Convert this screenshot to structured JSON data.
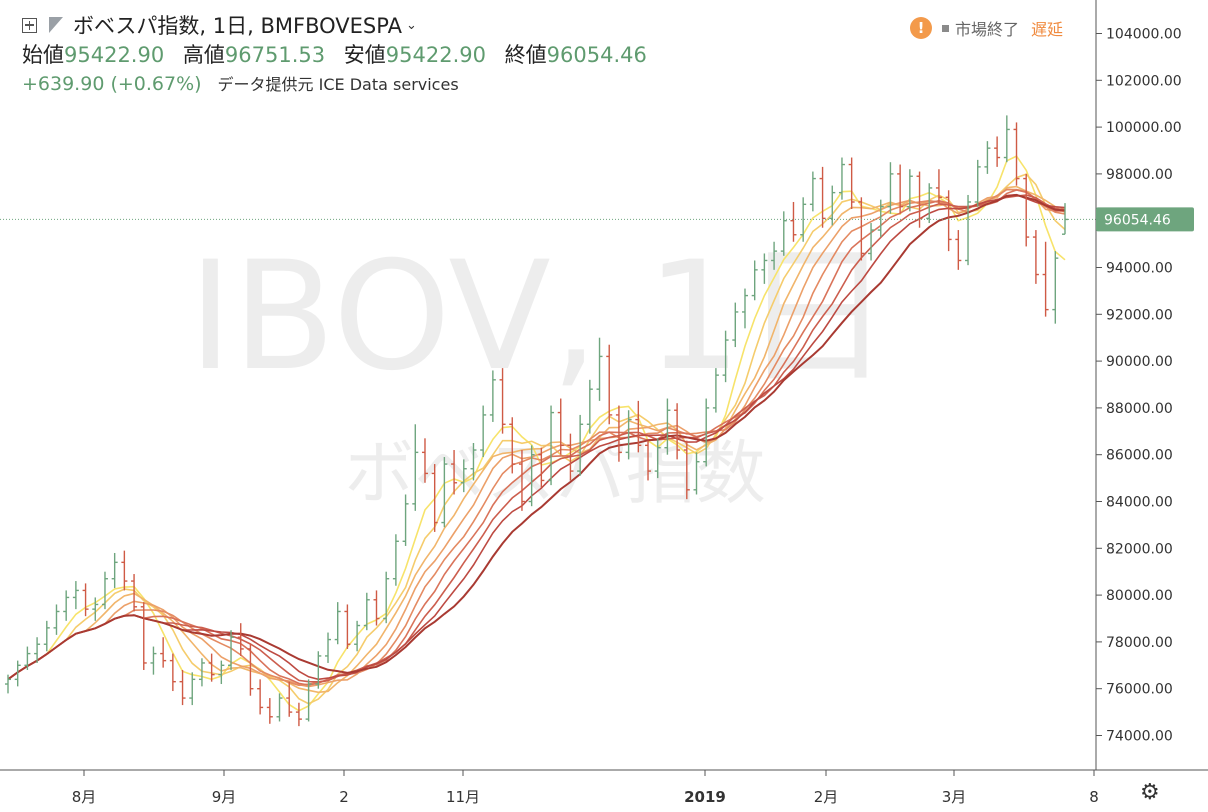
{
  "header": {
    "title": "ボベスパ指数, 1日, BMFBOVESPA",
    "open_label": "始値",
    "open": "95422.90",
    "high_label": "高値",
    "high": "96751.53",
    "low_label": "安値",
    "low": "95422.90",
    "close_label": "終値",
    "close": "96054.46",
    "change": "+639.90 (+0.67%)",
    "provider": "データ提供元 ICE Data services"
  },
  "status": {
    "market": "市場終了",
    "delay": "遅延"
  },
  "watermark": {
    "symbol": "IBOV, 1日",
    "name": "ボベスパ指数"
  },
  "colors": {
    "up": "#6ea57e",
    "down": "#cf5a45",
    "ribbon": [
      "#f7e36a",
      "#f5cc6c",
      "#f1b56b",
      "#eca069",
      "#e48a62",
      "#d9735a",
      "#cc5e4e",
      "#bd4a42",
      "#a93a32"
    ],
    "price_badge": "#6ea57e"
  },
  "chart_data": {
    "type": "candlestick",
    "y_ticks": [
      "104000.00",
      "102000.00",
      "100000.00",
      "98000.00",
      "96000.00",
      "94000.00",
      "92000.00",
      "90000.00",
      "88000.00",
      "86000.00",
      "84000.00",
      "82000.00",
      "80000.00",
      "78000.00",
      "76000.00",
      "74000.00"
    ],
    "x_ticks": [
      "8月",
      "9月",
      "2",
      "11月",
      "2019",
      "2月",
      "3月",
      "8"
    ],
    "ylim": [
      72000,
      105500
    ],
    "last_price": "96054.46",
    "ohlc_approx": [
      [
        76200,
        76600,
        75800,
        76400
      ],
      [
        76400,
        77200,
        76100,
        77000
      ],
      [
        77000,
        77800,
        76800,
        77500
      ],
      [
        77500,
        78200,
        77100,
        77900
      ],
      [
        77900,
        78900,
        77600,
        78600
      ],
      [
        78600,
        79600,
        78300,
        79300
      ],
      [
        79300,
        80200,
        78900,
        79900
      ],
      [
        79900,
        80600,
        79400,
        80200
      ],
      [
        80200,
        80500,
        79100,
        79400
      ],
      [
        79400,
        79900,
        78900,
        79600
      ],
      [
        79600,
        81000,
        79400,
        80700
      ],
      [
        80700,
        81800,
        80300,
        81400
      ],
      [
        81400,
        81900,
        80200,
        80600
      ],
      [
        80600,
        80900,
        79300,
        79500
      ],
      [
        79500,
        79700,
        76800,
        77100
      ],
      [
        77100,
        77800,
        76600,
        77500
      ],
      [
        77500,
        78200,
        76900,
        77200
      ],
      [
        77200,
        77500,
        75900,
        76300
      ],
      [
        76300,
        76800,
        75300,
        75600
      ],
      [
        75600,
        76700,
        75300,
        76400
      ],
      [
        76400,
        77300,
        76100,
        77100
      ],
      [
        77100,
        77500,
        76300,
        76600
      ],
      [
        76600,
        77200,
        76200,
        77000
      ],
      [
        77000,
        78500,
        76800,
        78200
      ],
      [
        78200,
        78800,
        77400,
        77700
      ],
      [
        77700,
        77900,
        75700,
        76000
      ],
      [
        76000,
        76400,
        74900,
        75200
      ],
      [
        75200,
        75600,
        74500,
        74800
      ],
      [
        74800,
        75800,
        74600,
        75600
      ],
      [
        75600,
        76300,
        74800,
        75000
      ],
      [
        75000,
        75400,
        74400,
        74700
      ],
      [
        74700,
        76400,
        74600,
        76200
      ],
      [
        76200,
        77600,
        76000,
        77400
      ],
      [
        77400,
        78400,
        77100,
        78100
      ],
      [
        78100,
        79700,
        77900,
        79300
      ],
      [
        79300,
        79600,
        77700,
        77900
      ],
      [
        77900,
        78900,
        77600,
        78700
      ],
      [
        78700,
        80100,
        78500,
        79800
      ],
      [
        79800,
        80200,
        78700,
        79000
      ],
      [
        79000,
        81000,
        78800,
        80700
      ],
      [
        80700,
        82600,
        80400,
        82300
      ],
      [
        82300,
        84300,
        82100,
        83900
      ],
      [
        83900,
        87300,
        83600,
        86100
      ],
      [
        86100,
        86700,
        84800,
        85200
      ],
      [
        85200,
        85600,
        82700,
        83100
      ],
      [
        83100,
        85900,
        82900,
        85600
      ],
      [
        85600,
        86200,
        84300,
        84800
      ],
      [
        84800,
        85800,
        84400,
        85400
      ],
      [
        85400,
        86500,
        84900,
        86200
      ],
      [
        86200,
        88100,
        85900,
        87700
      ],
      [
        87700,
        89600,
        87400,
        89200
      ],
      [
        89200,
        89700,
        86900,
        87300
      ],
      [
        87300,
        87600,
        85200,
        85600
      ],
      [
        85600,
        86200,
        83600,
        84000
      ],
      [
        84000,
        86400,
        83800,
        86000
      ],
      [
        86000,
        86300,
        84600,
        84900
      ],
      [
        84900,
        88100,
        84700,
        87800
      ],
      [
        87800,
        88400,
        86000,
        86400
      ],
      [
        86400,
        86900,
        84900,
        85300
      ],
      [
        85300,
        87700,
        85100,
        87300
      ],
      [
        87300,
        89200,
        86900,
        88800
      ],
      [
        88800,
        91000,
        88300,
        90200
      ],
      [
        90200,
        90700,
        87300,
        87700
      ],
      [
        87700,
        88100,
        85700,
        86100
      ],
      [
        86100,
        87900,
        85800,
        87500
      ],
      [
        87500,
        88300,
        86100,
        86400
      ],
      [
        86400,
        86600,
        84900,
        85300
      ],
      [
        85300,
        86700,
        85000,
        86300
      ],
      [
        86300,
        88400,
        86000,
        87900
      ],
      [
        87900,
        88200,
        85800,
        86200
      ],
      [
        86200,
        86600,
        84100,
        84500
      ],
      [
        84500,
        86100,
        84300,
        85700
      ],
      [
        85700,
        88400,
        85500,
        88000
      ],
      [
        88000,
        89700,
        87800,
        89400
      ],
      [
        89400,
        91300,
        89100,
        90900
      ],
      [
        90900,
        92500,
        90600,
        92100
      ],
      [
        92100,
        93100,
        91400,
        92800
      ],
      [
        92800,
        94300,
        92600,
        93900
      ],
      [
        93900,
        94600,
        93300,
        94300
      ],
      [
        94300,
        95100,
        93900,
        94700
      ],
      [
        94700,
        96400,
        94500,
        96000
      ],
      [
        96000,
        96800,
        95100,
        95400
      ],
      [
        95400,
        97000,
        95100,
        96700
      ],
      [
        96700,
        98100,
        96400,
        97800
      ],
      [
        97800,
        98300,
        95700,
        96100
      ],
      [
        96100,
        97500,
        95800,
        97200
      ],
      [
        97200,
        98700,
        96900,
        98400
      ],
      [
        98400,
        98700,
        96500,
        96800
      ],
      [
        96800,
        97000,
        94300,
        94600
      ],
      [
        94600,
        95900,
        94300,
        95600
      ],
      [
        95600,
        96900,
        95300,
        96600
      ],
      [
        96600,
        98500,
        96300,
        98000
      ],
      [
        98000,
        98400,
        96300,
        96600
      ],
      [
        96600,
        98200,
        96400,
        97900
      ],
      [
        97900,
        98100,
        95700,
        96100
      ],
      [
        96100,
        97600,
        95900,
        97400
      ],
      [
        97400,
        98200,
        96700,
        97000
      ],
      [
        97000,
        97300,
        94700,
        95200
      ],
      [
        95200,
        95600,
        93900,
        94300
      ],
      [
        94300,
        97100,
        94100,
        96800
      ],
      [
        96800,
        98600,
        96600,
        98300
      ],
      [
        98300,
        99400,
        98000,
        99100
      ],
      [
        99100,
        99600,
        98300,
        98700
      ],
      [
        98700,
        100500,
        98500,
        99900
      ],
      [
        99900,
        100200,
        97500,
        97800
      ],
      [
        97800,
        98000,
        94900,
        95300
      ],
      [
        95300,
        95600,
        93300,
        93700
      ],
      [
        93700,
        95100,
        91900,
        92200
      ],
      [
        92200,
        94700,
        91600,
        94400
      ],
      [
        95422.9,
        96751.53,
        95422.9,
        96054.46
      ]
    ]
  }
}
